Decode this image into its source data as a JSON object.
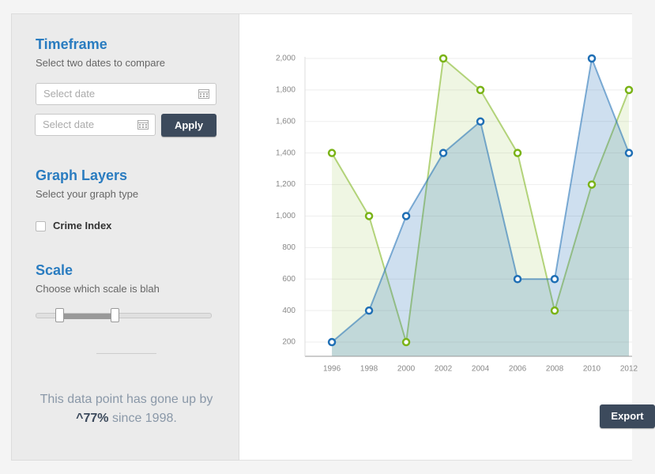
{
  "sidebar": {
    "timeframe": {
      "title": "Timeframe",
      "subtitle": "Select two dates to compare",
      "date_placeholder_1": "Select date",
      "date_placeholder_2": "Select date",
      "apply_button": "Apply"
    },
    "graph_layers": {
      "title": "Graph Layers",
      "subtitle": "Select your graph type",
      "checkbox_label": "Crime Index"
    },
    "scale": {
      "title": "Scale",
      "subtitle": "Choose which scale is blah"
    },
    "summary": {
      "prefix": "This data point has gone up by",
      "highlight": "^77%",
      "suffix": "since 1998."
    }
  },
  "chart_data": {
    "type": "area",
    "x": [
      1996,
      1998,
      2000,
      2002,
      2004,
      2006,
      2008,
      2010,
      2012
    ],
    "series": [
      {
        "color": "#7ab317",
        "values": [
          1400,
          1000,
          200,
          2000,
          1800,
          1400,
          400,
          1200,
          1800
        ]
      },
      {
        "color": "#1f6fb5",
        "values": [
          200,
          400,
          1000,
          1400,
          1600,
          600,
          600,
          2000,
          1400
        ]
      }
    ],
    "xlim": [
      1994.55,
      2012.17
    ],
    "xticks": [
      1996,
      1998,
      2000,
      2002,
      2004,
      2006,
      2008,
      2010,
      2012
    ],
    "ylim": [
      110,
      2000
    ],
    "yticks": [
      200,
      400,
      600,
      800,
      {
        "value": 1000,
        "label": "1,000"
      },
      {
        "value": 1200,
        "label": "1,200"
      },
      {
        "value": 1400,
        "label": "1,400"
      },
      {
        "value": 1600,
        "label": "1,600"
      },
      {
        "value": 1800,
        "label": "1,800"
      },
      {
        "value": 2000,
        "label": "2,000"
      }
    ],
    "grid": true
  },
  "export_button": "Export"
}
